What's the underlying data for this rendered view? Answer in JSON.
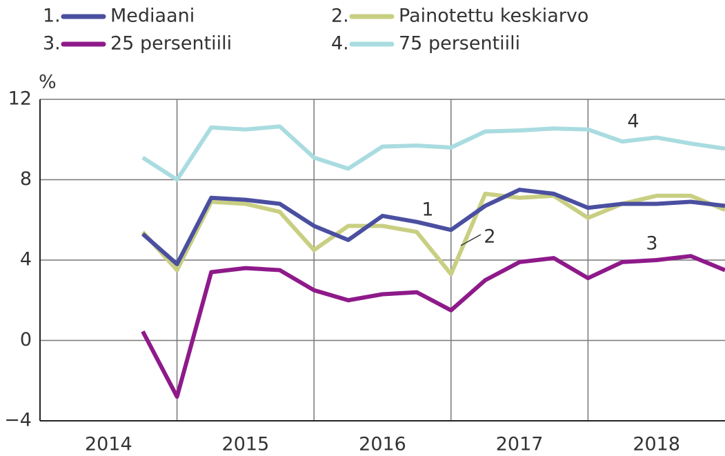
{
  "chart_data": {
    "type": "line",
    "y_unit": "%",
    "categories": [
      "2014",
      "2015",
      "2016",
      "2017",
      "2018"
    ],
    "x": [
      2014.75,
      2015.0,
      2015.25,
      2015.5,
      2015.75,
      2016.0,
      2016.25,
      2016.5,
      2016.75,
      2017.0,
      2017.25,
      2017.5,
      2017.75,
      2018.0,
      2018.25,
      2018.5,
      2018.75,
      2019.0
    ],
    "series": [
      {
        "label": "1.",
        "name": "Mediaani",
        "color": "#4a4fa0",
        "values": [
          5.3,
          3.8,
          7.1,
          7.0,
          6.8,
          5.7,
          5.0,
          6.2,
          5.9,
          5.5,
          6.7,
          7.5,
          7.3,
          6.6,
          6.8,
          6.8,
          6.9,
          6.7
        ]
      },
      {
        "label": "2.",
        "name": "Painotettu keskiarvo",
        "color": "#c9cf82",
        "values": [
          5.4,
          3.5,
          6.9,
          6.8,
          6.4,
          4.5,
          5.7,
          5.7,
          5.4,
          3.3,
          7.3,
          7.1,
          7.2,
          6.1,
          6.8,
          7.2,
          7.2,
          6.5
        ]
      },
      {
        "label": "3.",
        "name": "25 persentiili",
        "color": "#8e1a8a",
        "values": [
          0.45,
          -2.8,
          3.4,
          3.6,
          3.5,
          2.5,
          2.0,
          2.3,
          2.4,
          1.5,
          3.0,
          3.9,
          4.1,
          3.1,
          3.9,
          4.0,
          4.2,
          3.5
        ]
      },
      {
        "label": "4.",
        "name": "75 persentiili",
        "color": "#a9dce0",
        "values": [
          9.1,
          8.0,
          10.6,
          10.5,
          10.65,
          9.1,
          8.55,
          9.65,
          9.7,
          9.6,
          10.4,
          10.45,
          10.55,
          10.5,
          9.9,
          10.1,
          9.8,
          9.55
        ]
      }
    ],
    "annotations": [
      "1",
      "2",
      "3",
      "4"
    ],
    "xlim": [
      2014,
      2019
    ],
    "xticks": [
      2015,
      2016,
      2017,
      2018
    ],
    "ylim": [
      -4,
      12
    ],
    "yticks": [
      {
        "value": -4,
        "label": "−4"
      },
      0,
      4,
      8,
      12
    ],
    "grid": true
  }
}
